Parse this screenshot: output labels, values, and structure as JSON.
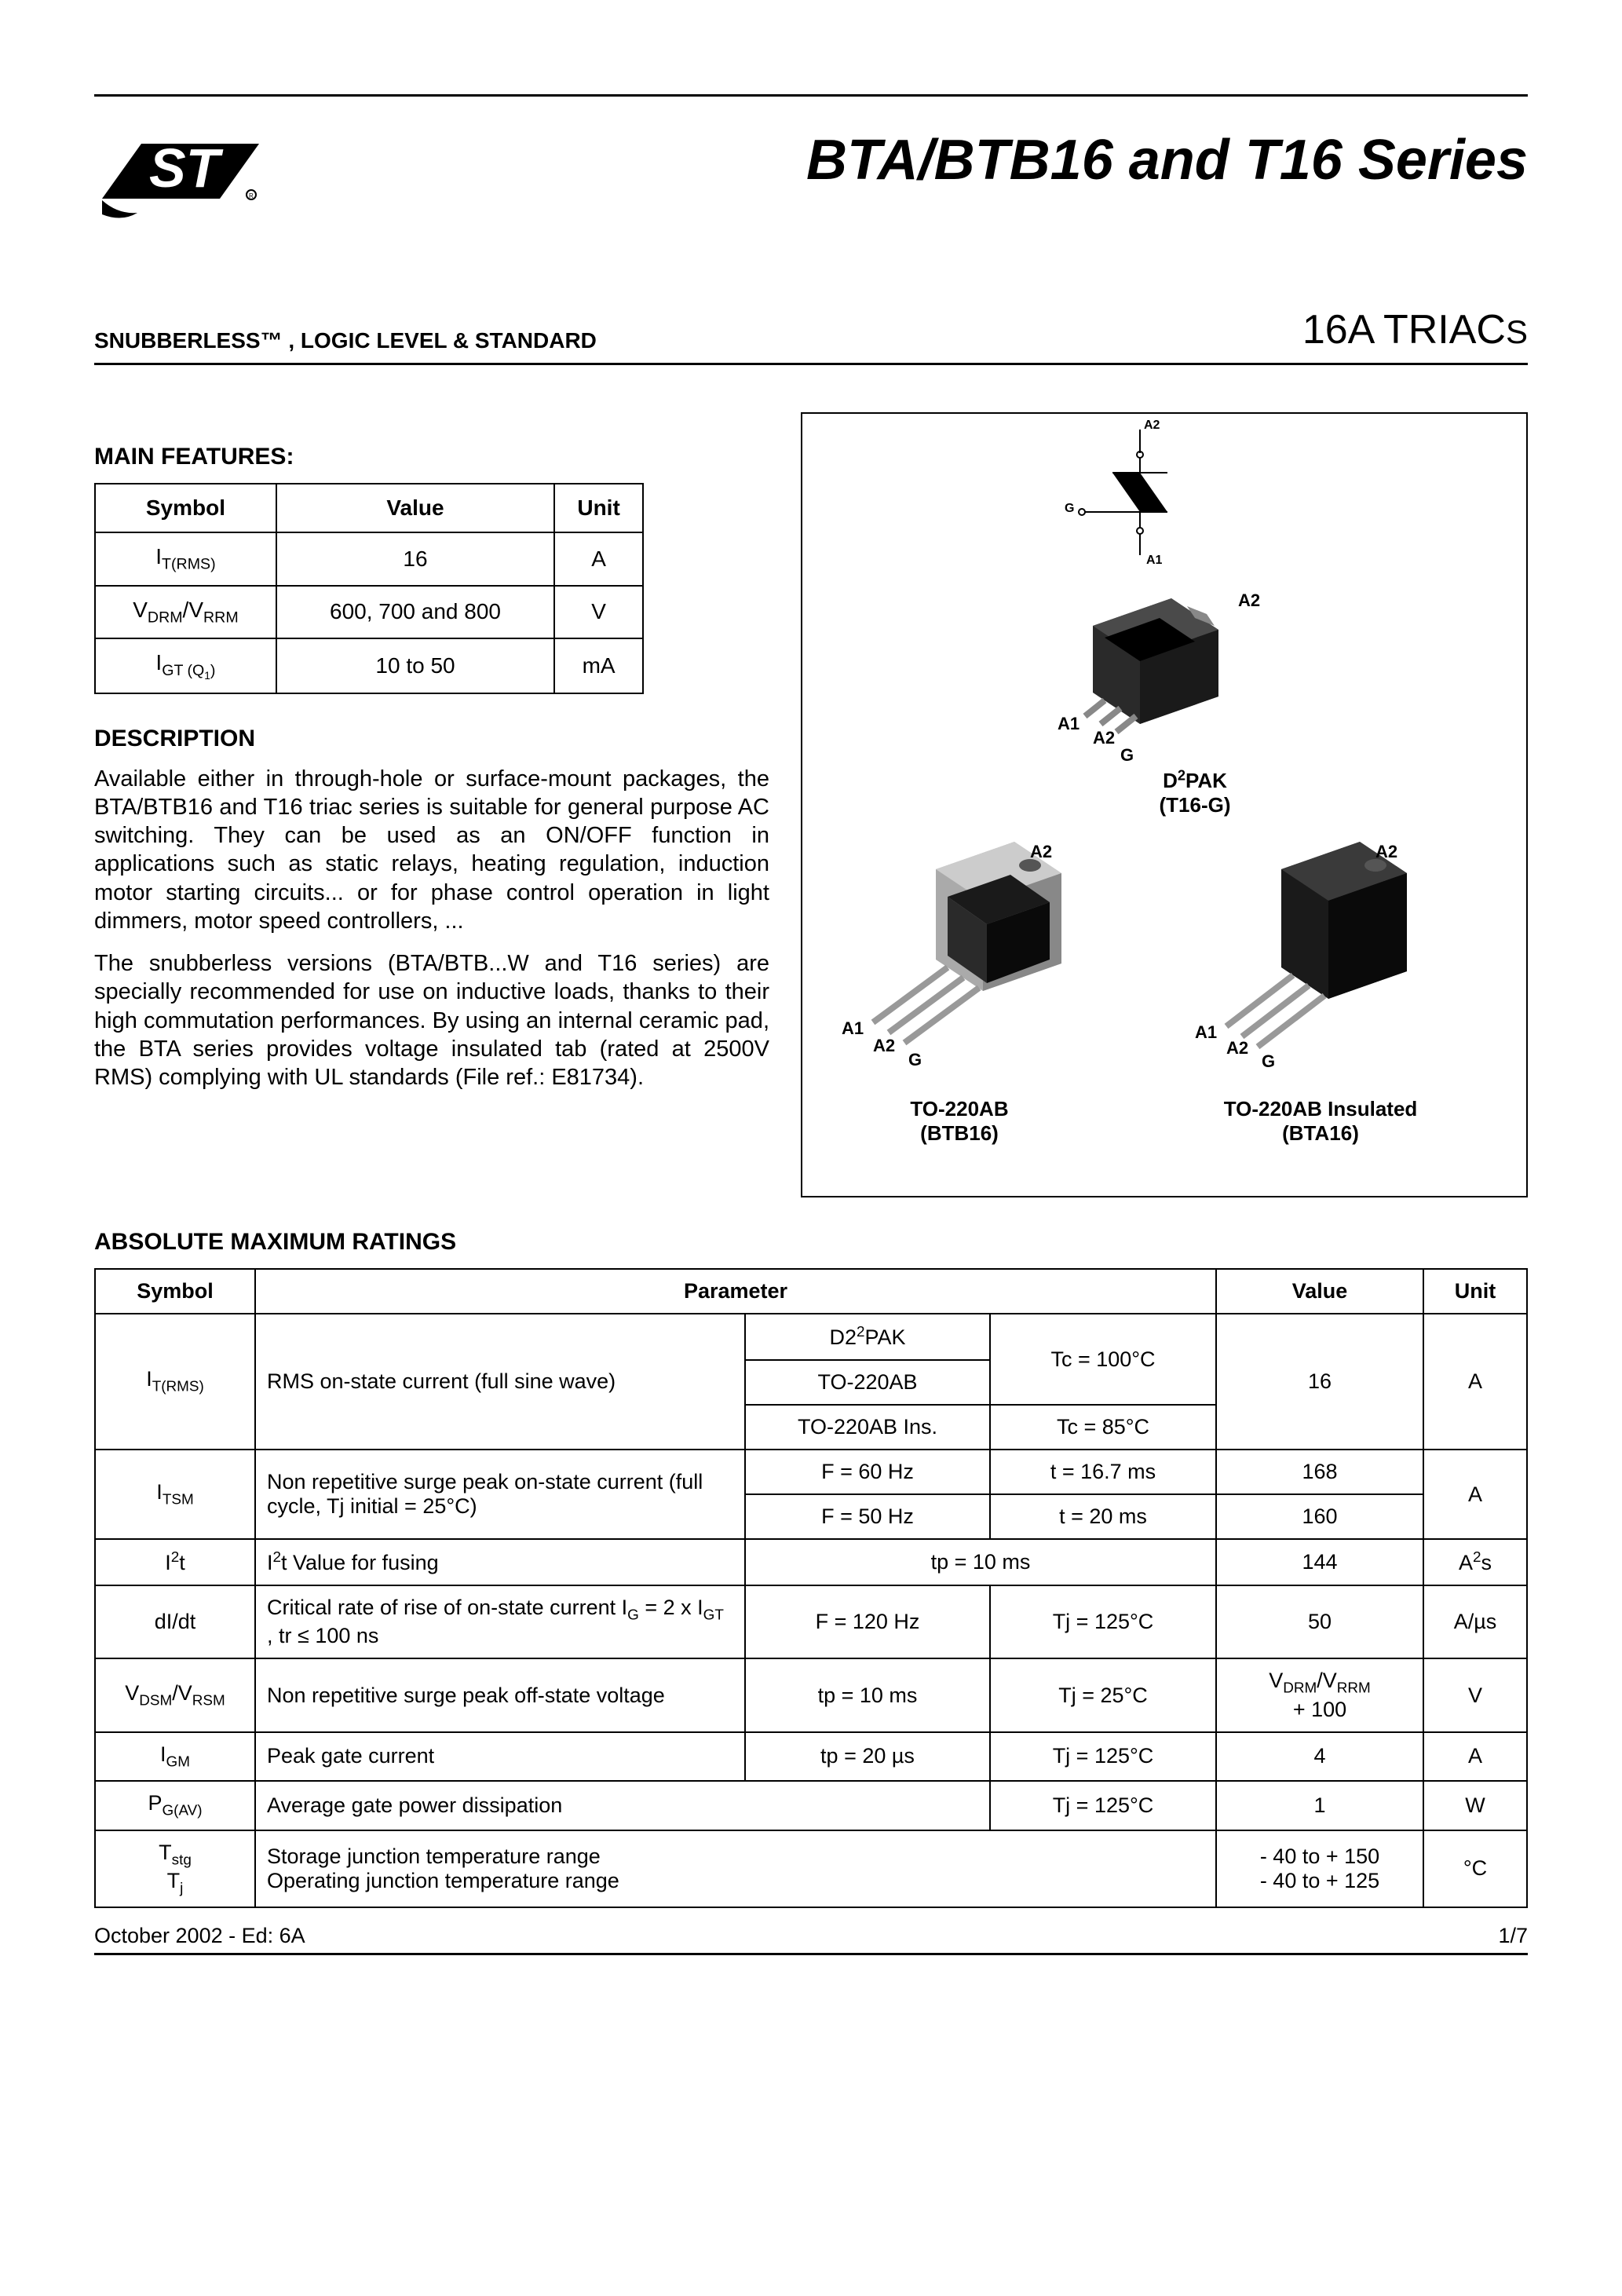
{
  "header": {
    "title": "BTA/BTB16 and T16 Series",
    "subtitle_left": "SNUBBERLESS™ , LOGIC LEVEL & STANDARD",
    "subtitle_right_prefix": "16A TRIAC",
    "subtitle_right_suffix": "S"
  },
  "features": {
    "heading": "MAIN FEATURES:",
    "columns": [
      "Symbol",
      "Value",
      "Unit"
    ],
    "rows": [
      {
        "symbol_html": "I<sub>T(RMS)</sub>",
        "value": "16",
        "unit": "A"
      },
      {
        "symbol_html": "V<sub>DRM</sub>/V<sub>RRM</sub>",
        "value": "600, 700 and 800",
        "unit": "V"
      },
      {
        "symbol_html": "I<sub>GT (Q<sub>1</sub>)</sub>",
        "value": "10 to 50",
        "unit": "mA"
      }
    ]
  },
  "description": {
    "heading": "DESCRIPTION",
    "p1": "Available either in through-hole or surface-mount packages, the BTA/BTB16 and T16 triac series is suitable for general purpose AC switching. They can be used as an ON/OFF function in applications such as static relays, heating regulation, induction motor starting circuits... or for phase control operation in light dimmers, motor speed controllers, ...",
    "p2": "The snubberless versions (BTA/BTB...W and T16 series) are specially recommended for use on inductive loads, thanks to their high commutation performances. By using an internal ceramic pad, the BTA series provides voltage insulated tab (rated at 2500V RMS) complying with UL standards (File ref.: E81734)."
  },
  "packages": {
    "symbol_pins": {
      "a2": "A2",
      "a1": "A1",
      "g": "G"
    },
    "d2pak": {
      "label_html": "D<sup>2</sup>PAK",
      "sub": "(T16-G)",
      "a1": "A1",
      "a2": "A2",
      "a2tab": "A2",
      "g": "G"
    },
    "to220": {
      "label": "TO-220AB",
      "sub": "(BTB16)",
      "a1": "A1",
      "a2": "A2",
      "a2tab": "A2",
      "g": "G"
    },
    "to220ins": {
      "label": "TO-220AB Insulated",
      "sub": "(BTA16)",
      "a1": "A1",
      "a2": "A2",
      "a2tab": "A2",
      "g": "G"
    }
  },
  "ratings": {
    "heading": "ABSOLUTE MAXIMUM RATINGS",
    "columns": [
      "Symbol",
      "Parameter",
      "Value",
      "Unit"
    ],
    "rows": {
      "itrms": {
        "sym_html": "I<sub>T(RMS)</sub>",
        "param": "RMS on-state current (full sine wave)",
        "c1a_html": "D2<sup>2</sup>PAK",
        "c1b": "TO-220AB",
        "c1c": "TO-220AB Ins.",
        "c2a": "Tc = 100°C",
        "c2c": "Tc = 85°C",
        "value": "16",
        "unit": "A"
      },
      "itsm": {
        "sym_html": "I<sub>TSM</sub>",
        "param": "Non repetitive surge peak on-state current  (full cycle, Tj initial = 25°C)",
        "c1a": "F = 60 Hz",
        "c2a": "t = 16.7 ms",
        "va": "168",
        "c1b": "F = 50 Hz",
        "c2b": "t = 20 ms",
        "vb": "160",
        "unit": "A"
      },
      "i2t": {
        "sym_html": "I<sup>2</sup>t",
        "param_html": "I<sup>2</sup>t Value for fusing",
        "cond": "tp = 10 ms",
        "value": "144",
        "unit_html": "A<sup>2</sup>s"
      },
      "didt": {
        "sym": "dI/dt",
        "param_html": "Critical rate of rise of on-state current I<sub>G</sub> = 2 x I<sub>GT</sub> , tr ≤ 100 ns",
        "c1": "F = 120 Hz",
        "c2": "Tj = 125°C",
        "value": "50",
        "unit": "A/µs"
      },
      "vdsm": {
        "sym_html": "V<sub>DSM</sub>/V<sub>RSM</sub>",
        "param": "Non repetitive surge peak off-state voltage",
        "c1": "tp = 10 ms",
        "c2": "Tj = 25°C",
        "value_html": "V<sub>DRM</sub>/V<sub>RRM</sub><br>+ 100",
        "unit": "V"
      },
      "igm": {
        "sym_html": "I<sub>GM</sub>",
        "param": "Peak gate current",
        "c1": "tp = 20 µs",
        "c2": "Tj = 125°C",
        "value": "4",
        "unit": "A"
      },
      "pgav": {
        "sym_html": "P<sub>G(AV)</sub>",
        "param": "Average gate power dissipation",
        "c2": "Tj = 125°C",
        "value": "1",
        "unit": "W"
      },
      "tstg": {
        "sym_html": "T<sub>stg</sub><br>T<sub>j</sub>",
        "param_html": "Storage junction temperature range<br>Operating junction temperature range",
        "value_html": "- 40 to + 150<br>- 40 to + 125",
        "unit": "°C"
      }
    }
  },
  "footer": {
    "left": "October 2002 - Ed: 6A",
    "right": "1/7"
  }
}
